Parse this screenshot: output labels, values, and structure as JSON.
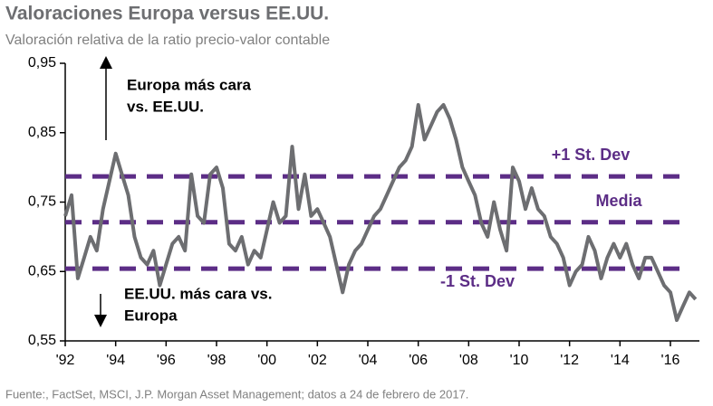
{
  "chart_data": {
    "type": "line",
    "title": "Valoraciones Europa versus EE.UU.",
    "subtitle": "Valoración relativa de la ratio precio-valor contable",
    "source": "Fuente:, FactSet, MSCI, J.P. Morgan Asset Management; datos a 24 de febrero de 2017.",
    "annotations": [
      [
        "Europa más cara",
        "vs. EE.UU."
      ],
      [
        "EE.UU. más cara vs.",
        "Europa"
      ]
    ],
    "x": [
      1992,
      1992.25,
      1992.5,
      1992.75,
      1993,
      1993.25,
      1993.5,
      1993.75,
      1994,
      1994.25,
      1994.5,
      1994.75,
      1995,
      1995.25,
      1995.5,
      1995.75,
      1996,
      1996.25,
      1996.5,
      1996.75,
      1997,
      1997.25,
      1997.5,
      1997.75,
      1998,
      1998.25,
      1998.5,
      1998.75,
      1999,
      1999.25,
      1999.5,
      1999.75,
      2000,
      2000.25,
      2000.5,
      2000.75,
      2001,
      2001.25,
      2001.5,
      2001.75,
      2002,
      2002.25,
      2002.5,
      2002.75,
      2003,
      2003.25,
      2003.5,
      2003.75,
      2004,
      2004.25,
      2004.5,
      2004.75,
      2005,
      2005.25,
      2005.5,
      2005.75,
      2006,
      2006.25,
      2006.5,
      2006.75,
      2007,
      2007.25,
      2007.5,
      2007.75,
      2008,
      2008.25,
      2008.5,
      2008.75,
      2009,
      2009.25,
      2009.5,
      2009.75,
      2010,
      2010.25,
      2010.5,
      2010.75,
      2011,
      2011.25,
      2011.5,
      2011.75,
      2012,
      2012.25,
      2012.5,
      2012.75,
      2013,
      2013.25,
      2013.5,
      2013.75,
      2014,
      2014.25,
      2014.5,
      2014.75,
      2015,
      2015.25,
      2015.5,
      2015.75,
      2016,
      2016.25,
      2016.5,
      2016.75,
      2017
    ],
    "series": [
      {
        "color": "#6d6e71",
        "values": [
          0.73,
          0.76,
          0.64,
          0.67,
          0.7,
          0.68,
          0.74,
          0.78,
          0.82,
          0.79,
          0.76,
          0.7,
          0.67,
          0.66,
          0.68,
          0.63,
          0.66,
          0.69,
          0.7,
          0.68,
          0.79,
          0.73,
          0.72,
          0.79,
          0.8,
          0.77,
          0.69,
          0.68,
          0.7,
          0.66,
          0.68,
          0.67,
          0.71,
          0.75,
          0.72,
          0.73,
          0.83,
          0.74,
          0.79,
          0.73,
          0.74,
          0.72,
          0.7,
          0.66,
          0.62,
          0.66,
          0.68,
          0.69,
          0.71,
          0.73,
          0.74,
          0.76,
          0.78,
          0.8,
          0.81,
          0.83,
          0.89,
          0.84,
          0.86,
          0.88,
          0.89,
          0.87,
          0.84,
          0.8,
          0.78,
          0.76,
          0.72,
          0.7,
          0.75,
          0.71,
          0.68,
          0.8,
          0.78,
          0.74,
          0.77,
          0.74,
          0.73,
          0.7,
          0.69,
          0.67,
          0.63,
          0.65,
          0.66,
          0.7,
          0.68,
          0.64,
          0.67,
          0.69,
          0.67,
          0.69,
          0.66,
          0.64,
          0.67,
          0.67,
          0.65,
          0.63,
          0.62,
          0.58,
          0.6,
          0.62,
          0.61
        ]
      }
    ],
    "reference_lines": [
      {
        "name": "+1 St. Dev",
        "value": 0.787
      },
      {
        "name": "Media",
        "value": 0.721
      },
      {
        "name": "-1 St. Dev",
        "value": 0.654
      }
    ],
    "reference_color": "#5c2d86",
    "xlim": [
      1992,
      2017.15
    ],
    "xticks": [
      {
        "value": 1992,
        "label": "'92"
      },
      {
        "value": 1994,
        "label": "'94"
      },
      {
        "value": 1996,
        "label": "'96"
      },
      {
        "value": 1998,
        "label": "'98"
      },
      {
        "value": 2000,
        "label": "'00"
      },
      {
        "value": 2002,
        "label": "'02"
      },
      {
        "value": 2004,
        "label": "'04"
      },
      {
        "value": 2006,
        "label": "'06"
      },
      {
        "value": 2008,
        "label": "'08"
      },
      {
        "value": 2010,
        "label": "'10"
      },
      {
        "value": 2012,
        "label": "'12"
      },
      {
        "value": 2014,
        "label": "'14"
      },
      {
        "value": 2016,
        "label": "'16"
      }
    ],
    "ylim": [
      0.55,
      0.95
    ],
    "yticks": [
      {
        "value": 0.55,
        "label": "0,55"
      },
      {
        "value": 0.65,
        "label": "0,65"
      },
      {
        "value": 0.75,
        "label": "0,75"
      },
      {
        "value": 0.85,
        "label": "0,85"
      },
      {
        "value": 0.95,
        "label": "0,95"
      }
    ]
  }
}
